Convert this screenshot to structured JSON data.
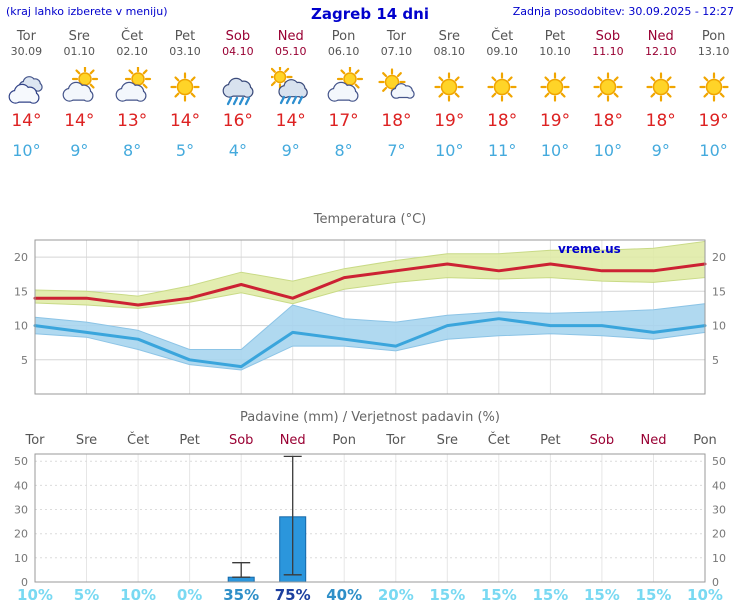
{
  "header": {
    "left_note": "(kraj lahko izberete v meniju)",
    "title": "Zagreb 14 dni",
    "last_update": "Zadnja posodobitev: 30.09.2025 - 12:27"
  },
  "colors": {
    "header_blue": "#0000cc",
    "day_gray": "#555555",
    "weekend_red": "#990033",
    "temp_high_red": "#dd2222",
    "temp_low_blue": "#44aadd",
    "chart_title_gray": "#666666"
  },
  "forecast": {
    "days": [
      {
        "name": "Tor",
        "date": "30.09",
        "weekend": false,
        "icon": "cloudy",
        "tmax": 14,
        "tmin": 10
      },
      {
        "name": "Sre",
        "date": "01.10",
        "weekend": false,
        "icon": "partly-cloudy",
        "tmax": 14,
        "tmin": 9
      },
      {
        "name": "Čet",
        "date": "02.10",
        "weekend": false,
        "icon": "partly-cloudy",
        "tmax": 13,
        "tmin": 8
      },
      {
        "name": "Pet",
        "date": "03.10",
        "weekend": false,
        "icon": "sunny",
        "tmax": 14,
        "tmin": 5
      },
      {
        "name": "Sob",
        "date": "04.10",
        "weekend": true,
        "icon": "rain",
        "tmax": 16,
        "tmin": 4
      },
      {
        "name": "Ned",
        "date": "05.10",
        "weekend": true,
        "icon": "sun-rain",
        "tmax": 14,
        "tmin": 9
      },
      {
        "name": "Pon",
        "date": "06.10",
        "weekend": false,
        "icon": "partly-cloudy",
        "tmax": 17,
        "tmin": 8
      },
      {
        "name": "Tor",
        "date": "07.10",
        "weekend": false,
        "icon": "mostly-sunny",
        "tmax": 18,
        "tmin": 7
      },
      {
        "name": "Sre",
        "date": "08.10",
        "weekend": false,
        "icon": "sunny",
        "tmax": 19,
        "tmin": 10
      },
      {
        "name": "Čet",
        "date": "09.10",
        "weekend": false,
        "icon": "sunny",
        "tmax": 18,
        "tmin": 11
      },
      {
        "name": "Pet",
        "date": "10.10",
        "weekend": false,
        "icon": "sunny",
        "tmax": 19,
        "tmin": 10
      },
      {
        "name": "Sob",
        "date": "11.10",
        "weekend": true,
        "icon": "sunny",
        "tmax": 18,
        "tmin": 10
      },
      {
        "name": "Ned",
        "date": "12.10",
        "weekend": true,
        "icon": "sunny",
        "tmax": 18,
        "tmin": 9
      },
      {
        "name": "Pon",
        "date": "13.10",
        "weekend": false,
        "icon": "sunny",
        "tmax": 19,
        "tmin": 10
      }
    ]
  },
  "chart_data": [
    {
      "type": "line",
      "title": "Temperatura (°C)",
      "watermark": "vreme.us",
      "ylim": [
        0,
        22.5
      ],
      "yticks": [
        5,
        10,
        15,
        20
      ],
      "categories": [
        "Tor",
        "Sre",
        "Čet",
        "Pet",
        "Sob",
        "Ned",
        "Pon",
        "Tor",
        "Sre",
        "Čet",
        "Pet",
        "Sob",
        "Ned",
        "Pon"
      ],
      "series": [
        {
          "key": "tmax",
          "color": "#cc2233",
          "band_color": "#dfeaa5",
          "band_edge": "#c9da86",
          "values": [
            14,
            14,
            13,
            14,
            16,
            14,
            17,
            18,
            19,
            18,
            19,
            18,
            18,
            19
          ],
          "band_low": [
            13.3,
            13.0,
            12.5,
            13.4,
            14.8,
            13.2,
            15.3,
            16.3,
            17.0,
            16.8,
            17.0,
            16.5,
            16.3,
            17.0
          ],
          "band_high": [
            15.2,
            15.0,
            14.3,
            15.8,
            17.8,
            16.5,
            18.3,
            19.5,
            20.5,
            20.5,
            21.0,
            21.0,
            21.3,
            22.3
          ]
        },
        {
          "key": "tmin",
          "color": "#3aa5dc",
          "band_color": "#a5d4ee",
          "band_edge": "#8cc4e6",
          "values": [
            10,
            9,
            8,
            5,
            4,
            9,
            8,
            7,
            10,
            11,
            10,
            10,
            9,
            10
          ],
          "band_low": [
            8.8,
            8.3,
            6.5,
            4.3,
            3.5,
            7.0,
            7.0,
            6.3,
            8.0,
            8.5,
            8.8,
            8.5,
            8.0,
            9.0
          ],
          "band_high": [
            11.2,
            10.5,
            9.3,
            6.5,
            6.5,
            13.0,
            11.0,
            10.5,
            11.5,
            12.0,
            11.8,
            12.0,
            12.3,
            13.2
          ]
        }
      ]
    },
    {
      "type": "bar",
      "title": "Padavine (mm) / Verjetnost padavin (%)",
      "categories": [
        "Tor",
        "Sre",
        "Čet",
        "Pet",
        "Sob",
        "Ned",
        "Pon",
        "Tor",
        "Sre",
        "Čet",
        "Pet",
        "Sob",
        "Ned",
        "Pon"
      ],
      "weekend_indexes": [
        4,
        5,
        11,
        12
      ],
      "ylim": [
        0,
        53
      ],
      "yticks": [
        0,
        10,
        20,
        30,
        40,
        50
      ],
      "values_mm": [
        0,
        0,
        0,
        0,
        2,
        27,
        0,
        0,
        0,
        0,
        0,
        0,
        0,
        0
      ],
      "whiskers": [
        null,
        null,
        null,
        null,
        [
          2,
          8
        ],
        [
          3,
          52
        ],
        null,
        null,
        null,
        null,
        null,
        null,
        null,
        null
      ],
      "probabilities_pct": [
        10,
        5,
        10,
        0,
        35,
        75,
        40,
        20,
        15,
        15,
        15,
        15,
        15,
        10
      ],
      "bar_color": "#2b96dc",
      "bar_edge": "#1668a8",
      "prob_colors": {
        "low": "#79d9f2",
        "mid": "#2e8fc8",
        "high": "#1c3f9e"
      },
      "prob_thresholds": {
        "mid": 30,
        "high": 70
      }
    }
  ]
}
